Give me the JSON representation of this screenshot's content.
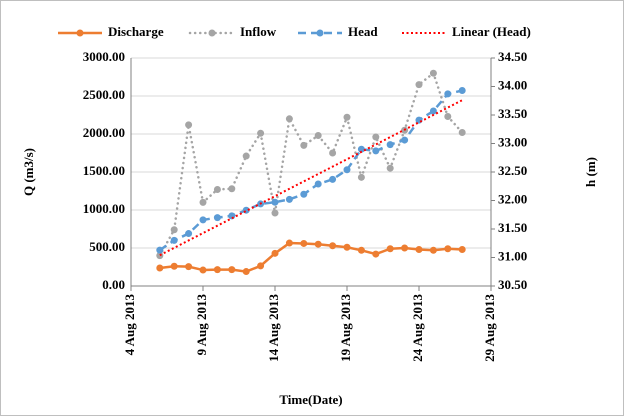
{
  "chart_data": {
    "type": "line",
    "xlabel": "Time(Date)",
    "ylabel": "Q (m3/s)",
    "y2label": "h (m)",
    "x": [
      "2013-08-06",
      "2013-08-07",
      "2013-08-08",
      "2013-08-09",
      "2013-08-10",
      "2013-08-11",
      "2013-08-12",
      "2013-08-13",
      "2013-08-14",
      "2013-08-15",
      "2013-08-16",
      "2013-08-17",
      "2013-08-18",
      "2013-08-19",
      "2013-08-20",
      "2013-08-21",
      "2013-08-22",
      "2013-08-23",
      "2013-08-24",
      "2013-08-25",
      "2013-08-26",
      "2013-08-27"
    ],
    "series": [
      {
        "name": "Discharge",
        "color": "#ED7D31",
        "dash": "solid",
        "marker": true,
        "values": [
          237,
          260,
          255,
          210,
          215,
          215,
          190,
          265,
          430,
          565,
          560,
          550,
          530,
          510,
          470,
          420,
          490,
          500,
          480,
          470,
          490,
          480
        ]
      },
      {
        "name": "Inflow",
        "color": "#A5A5A5",
        "dash": "dot",
        "marker": true,
        "values": [
          400,
          740,
          2120,
          1100,
          1270,
          1280,
          1710,
          2010,
          960,
          2200,
          1850,
          1980,
          1750,
          2220,
          1430,
          1960,
          1550,
          2050,
          2650,
          2800,
          2230,
          2020
        ]
      },
      {
        "name": "Head",
        "color": "#5B9BD5",
        "dash": "dash",
        "marker": true,
        "axis": "y2",
        "values": [
          31.13,
          31.3,
          31.42,
          31.66,
          31.7,
          31.73,
          31.83,
          31.94,
          31.97,
          32.02,
          32.11,
          32.29,
          32.37,
          32.54,
          32.9,
          32.87,
          32.98,
          33.06,
          33.41,
          33.57,
          33.87,
          33.93
        ]
      },
      {
        "name": "Linear (Head)",
        "color": "#FF0000",
        "dash": "fine",
        "marker": false,
        "axis": "y2",
        "x": [
          "2013-08-06",
          "2013-08-27"
        ],
        "values": [
          31.04,
          33.76
        ]
      }
    ],
    "xlim": [
      "2013-08-04",
      "2013-08-29"
    ],
    "xticks": [
      {
        "value": "2013-08-04",
        "label": "4 Aug 2013"
      },
      {
        "value": "2013-08-09",
        "label": "9 Aug 2013"
      },
      {
        "value": "2013-08-14",
        "label": "14 Aug 2013"
      },
      {
        "value": "2013-08-19",
        "label": "19 Aug 2013"
      },
      {
        "value": "2013-08-24",
        "label": "24 Aug 2013"
      },
      {
        "value": "2013-08-29",
        "label": "29 Aug 2013"
      }
    ],
    "ylim": [
      0,
      3000
    ],
    "yticks": [
      {
        "value": 0,
        "label": "0.00"
      },
      {
        "value": 500,
        "label": "500.00"
      },
      {
        "value": 1000,
        "label": "1000.00"
      },
      {
        "value": 1500,
        "label": "1500.00"
      },
      {
        "value": 2000,
        "label": "2000.00"
      },
      {
        "value": 2500,
        "label": "2500.00"
      },
      {
        "value": 3000,
        "label": "3000.00"
      }
    ],
    "y2lim": [
      30.5,
      34.5
    ],
    "y2ticks": [
      {
        "value": 30.5,
        "label": "30.50"
      },
      {
        "value": 31,
        "label": "31.00"
      },
      {
        "value": 31.5,
        "label": "31.50"
      },
      {
        "value": 32,
        "label": "32.00"
      },
      {
        "value": 32.5,
        "label": "32.50"
      },
      {
        "value": 33,
        "label": "33.00"
      },
      {
        "value": 33.5,
        "label": "33.50"
      },
      {
        "value": 34,
        "label": "34.00"
      },
      {
        "value": 34.5,
        "label": "34.50"
      }
    ],
    "grid": true,
    "legend": "top"
  }
}
